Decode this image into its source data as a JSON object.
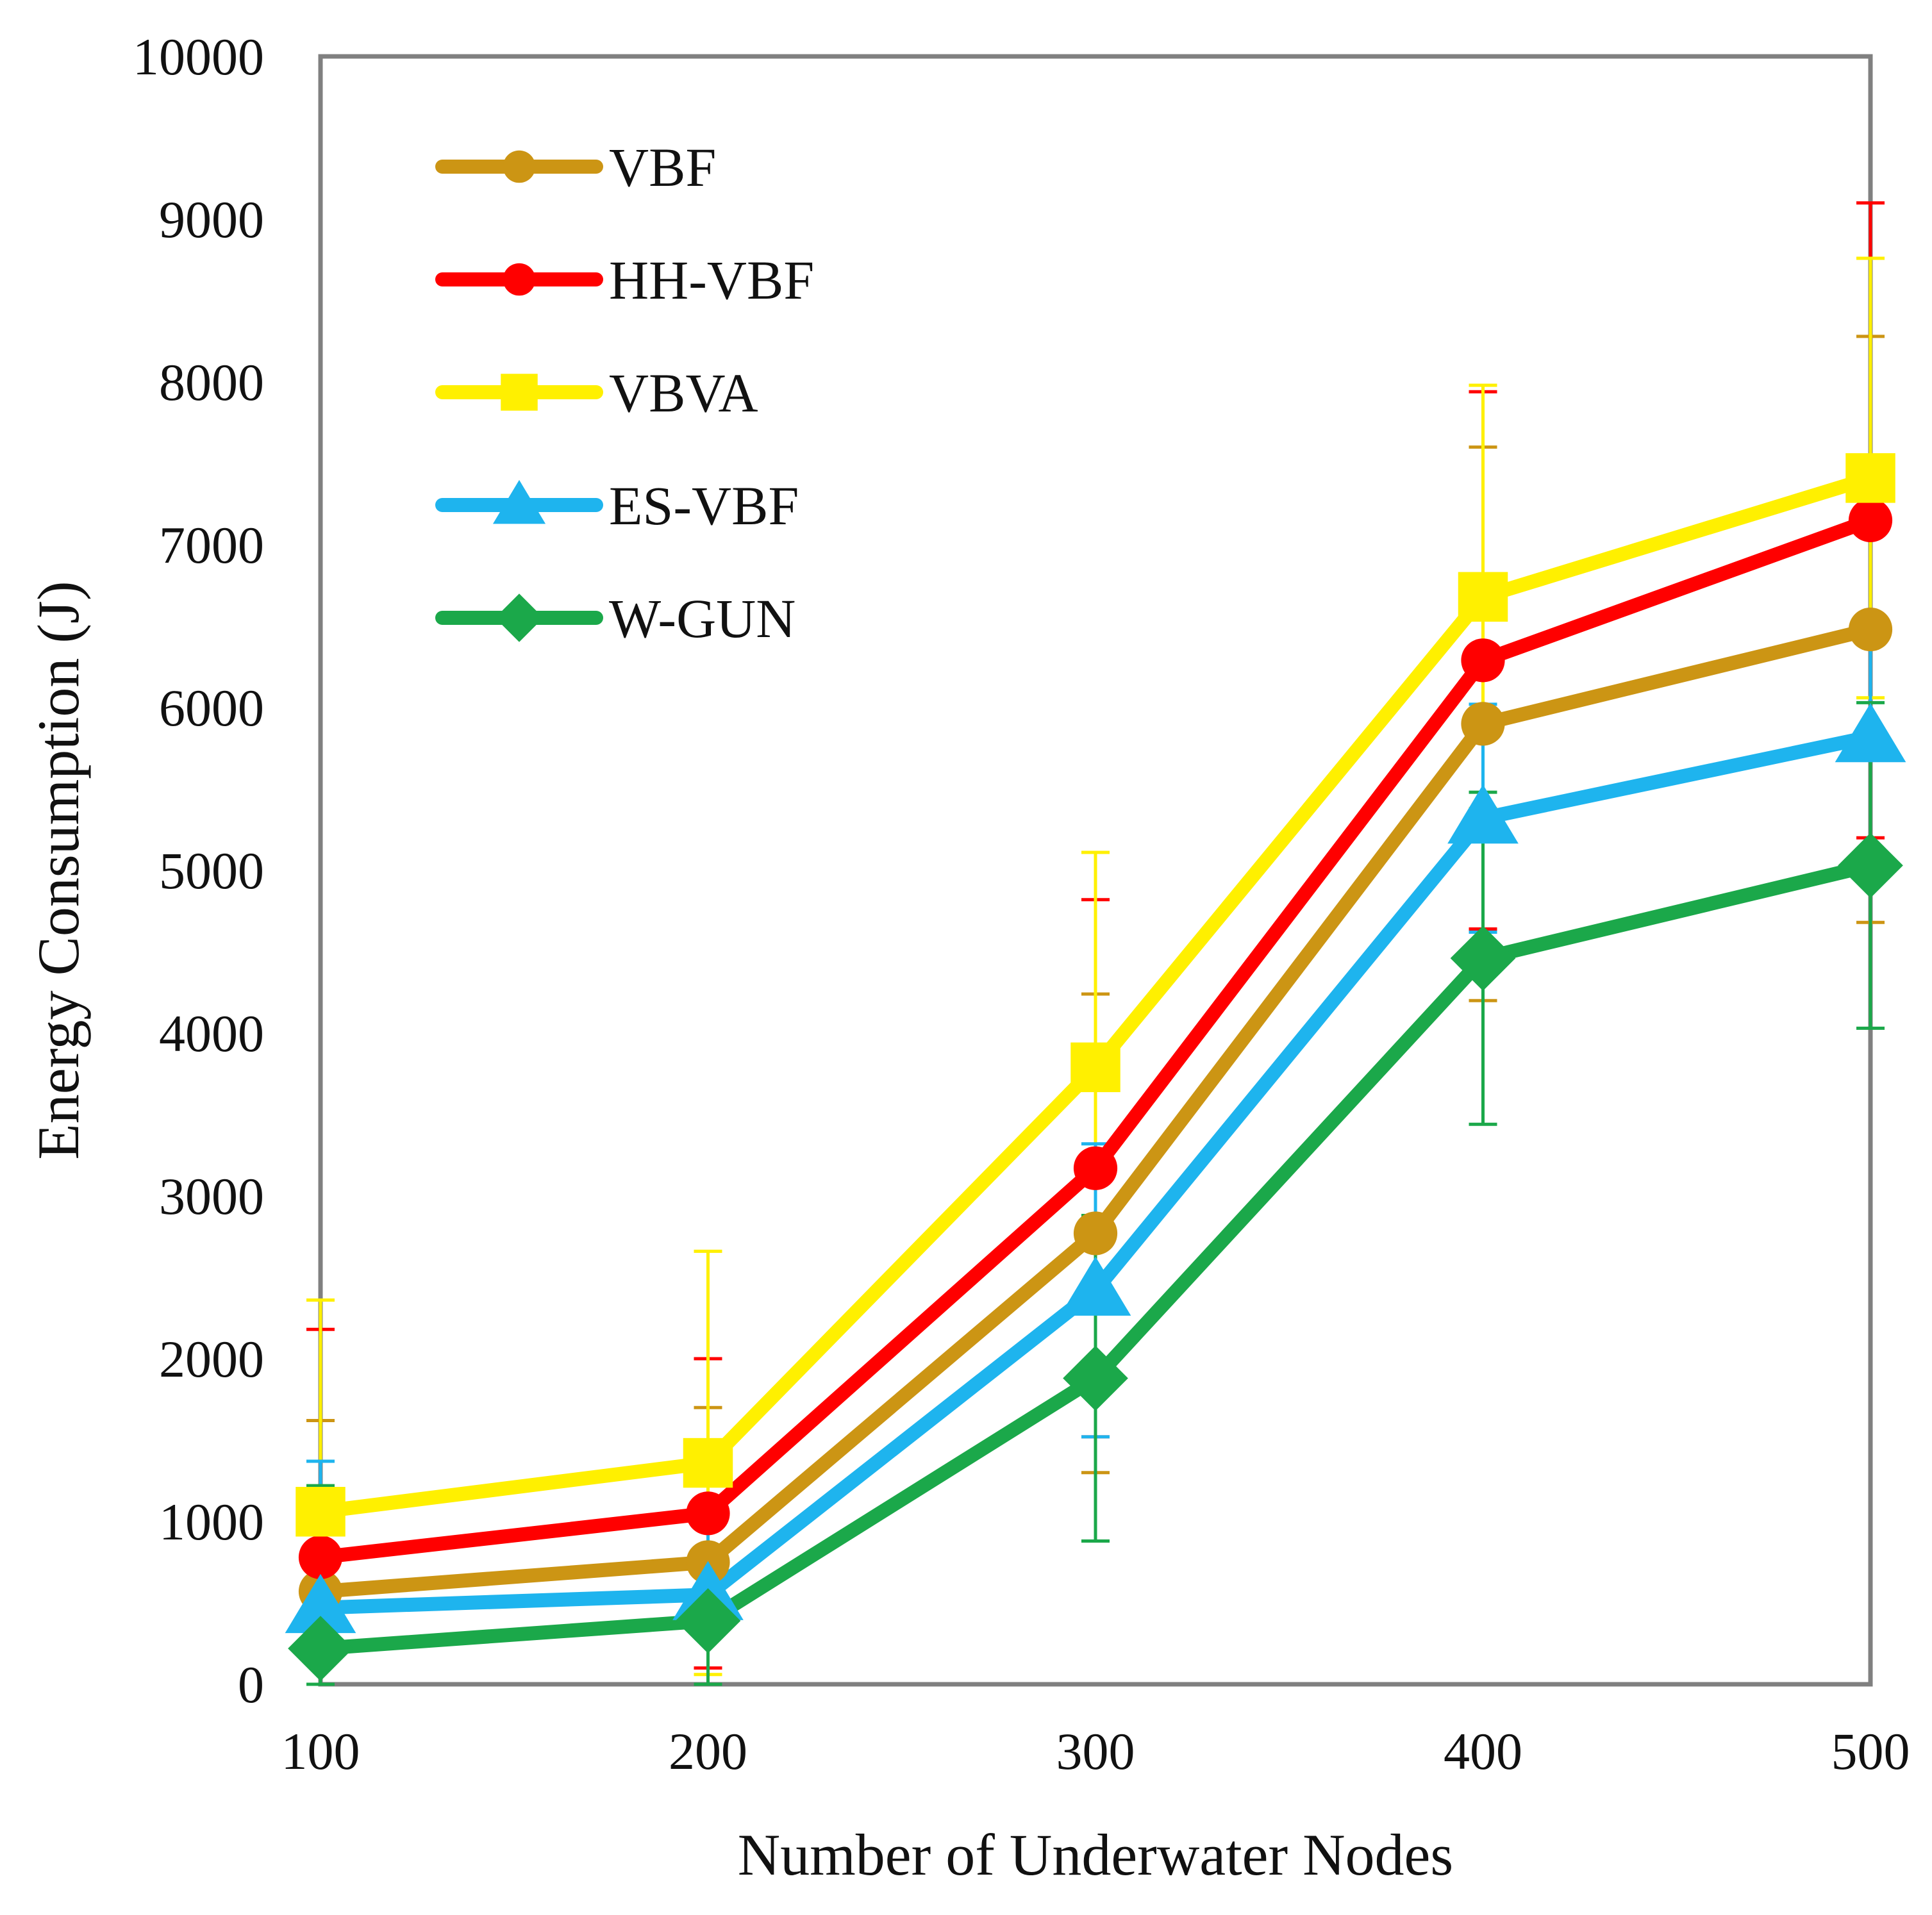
{
  "chart_data": {
    "type": "line",
    "title": "",
    "xlabel": "Number of Underwater Nodes",
    "ylabel": "Energy Consumption (J)",
    "x": [
      100,
      200,
      300,
      400,
      500
    ],
    "x_tick_labels": [
      "100",
      "200",
      "300",
      "400",
      "500"
    ],
    "xlim": [
      100,
      500
    ],
    "ylim": [
      0,
      10000
    ],
    "y_ticks": [
      0,
      1000,
      2000,
      3000,
      4000,
      5000,
      6000,
      7000,
      8000,
      9000,
      10000
    ],
    "y_tick_labels": [
      "0",
      "1000",
      "2000",
      "3000",
      "4000",
      "5000",
      "6000",
      "7000",
      "8000",
      "9000",
      "10000"
    ],
    "grid": false,
    "legend_position": "top-left",
    "series": [
      {
        "name": "VBF",
        "color": "#CC9514",
        "marker": "circle",
        "values": [
          570,
          750,
          2770,
          5900,
          6480
        ],
        "error": [
          1050,
          950,
          1470,
          1700,
          1800
        ]
      },
      {
        "name": "HH-VBF",
        "color": "#FF0000",
        "marker": "circle",
        "values": [
          780,
          1050,
          3170,
          6290,
          7150
        ],
        "error": [
          1400,
          950,
          1650,
          1650,
          1950
        ]
      },
      {
        "name": "VBVA",
        "color": "#FFF000",
        "marker": "square",
        "values": [
          1060,
          1360,
          3790,
          6680,
          7410
        ],
        "error": [
          1300,
          1300,
          1320,
          1300,
          1350
        ]
      },
      {
        "name": "ES-VBF",
        "color": "#1EB4EE",
        "marker": "triangle",
        "values": [
          470,
          550,
          2420,
          5320,
          5820
        ],
        "error": [
          900,
          550,
          900,
          700,
          700
        ]
      },
      {
        "name": "W-GUN",
        "color": "#1BA84A",
        "marker": "diamond",
        "values": [
          220,
          390,
          1880,
          4460,
          5030
        ],
        "error": [
          1000,
          400,
          1000,
          1020,
          1000
        ]
      }
    ]
  }
}
